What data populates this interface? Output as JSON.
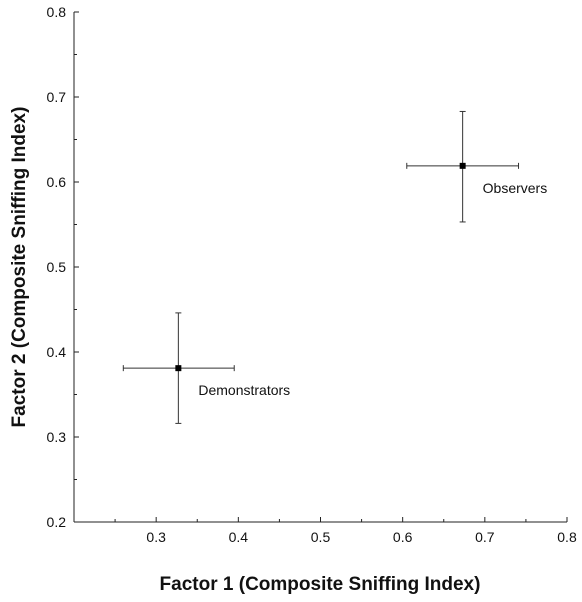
{
  "chart_data": {
    "type": "scatter",
    "title": "",
    "xlabel": "Factor 1 (Composite Sniffing Index)",
    "ylabel": "Factor 2 (Composite Sniffing Index)",
    "xlim": [
      0.2,
      0.8
    ],
    "ylim": [
      0.2,
      0.8
    ],
    "xticks": [
      "0.3",
      "0.4",
      "0.5",
      "0.6",
      "0.7",
      "0.8"
    ],
    "xticks_values": [
      0.3,
      0.4,
      0.5,
      0.6,
      0.7,
      0.8
    ],
    "yticks": [
      "0.2",
      "0.3",
      "0.4",
      "0.5",
      "0.6",
      "0.7",
      "0.8"
    ],
    "yticks_values": [
      0.2,
      0.3,
      0.4,
      0.5,
      0.6,
      0.7,
      0.8
    ],
    "grid": false,
    "marker_color": "#000000",
    "points": [
      {
        "label": "Demonstrators",
        "x": 0.327,
        "y": 0.381,
        "x_err": [
          0.26,
          0.395
        ],
        "y_err": [
          0.316,
          0.446
        ]
      },
      {
        "label": "Observers",
        "x": 0.673,
        "y": 0.619,
        "x_err": [
          0.605,
          0.741
        ],
        "y_err": [
          0.553,
          0.683
        ]
      }
    ]
  }
}
